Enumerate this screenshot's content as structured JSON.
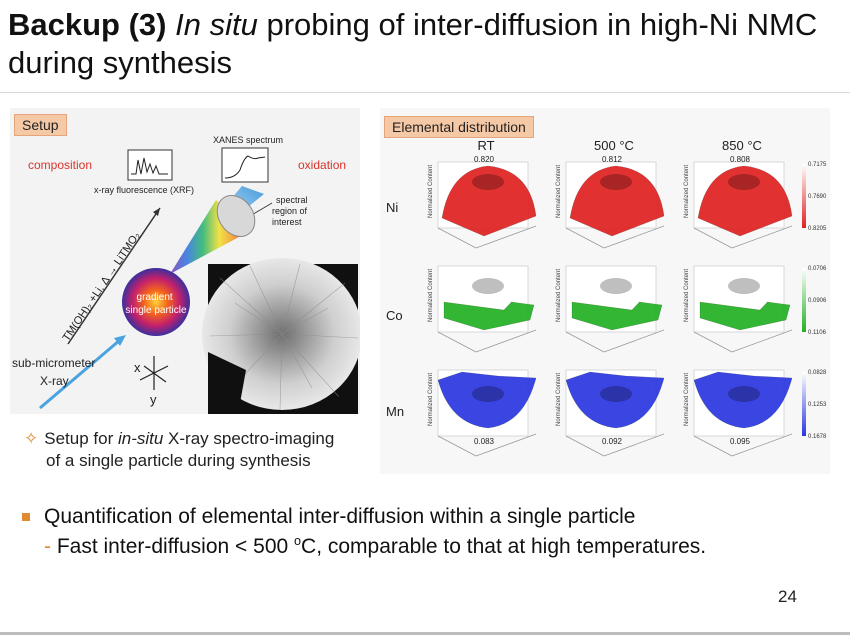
{
  "slide": {
    "title_bold": "Backup (3)",
    "title_italic": "In situ",
    "title_rest": "probing of inter-diffusion in high-Ni NMC during synthesis",
    "page_number": "24"
  },
  "setup_panel": {
    "tag": "Setup",
    "composition": "composition",
    "oxidation": "oxidation",
    "xanes": "XANES spectrum",
    "xrf": "x-ray fluorescence (XRF)",
    "spectral": [
      "spectral",
      "region of",
      "interest"
    ],
    "reaction": "TM(OH)₂ +Li, Δ → LiTMO₂",
    "particle": [
      "gradient",
      "single particle"
    ],
    "xray": [
      "sub-micrometer",
      "X-ray"
    ],
    "axis_x": "x",
    "axis_y": "y",
    "colors": {
      "beam": "#4aa3e0",
      "red_text": "#d9342b"
    }
  },
  "elemental_panel": {
    "tag": "Elemental distribution",
    "columns": [
      "RT",
      "500 °C",
      "850 °C"
    ],
    "rows": [
      {
        "element": "Ni",
        "color": "#e02020",
        "values": [
          "0.820",
          "0.812",
          "0.808"
        ],
        "scale": [
          "0.7175",
          "0.7690",
          "0.8205"
        ]
      },
      {
        "element": "Co",
        "color": "#22b022",
        "values": [
          "",
          "",
          ""
        ],
        "scale": [
          "0.0706",
          "0.0906",
          "0.1106"
        ]
      },
      {
        "element": "Mn",
        "color": "#2a36e0",
        "values": [
          "0.083",
          "0.092",
          "0.095"
        ],
        "scale": [
          "0.0828",
          "0.1253",
          "0.1678"
        ]
      }
    ],
    "axis_label": "Normalized Content"
  },
  "caption": {
    "line1_pre": "Setup for ",
    "line1_italic": "in-situ",
    "line1_post": " X-ray spectro-imaging",
    "line2": "of a single particle during synthesis"
  },
  "bullets": {
    "main": "Quantification of elemental inter-diffusion within a single particle",
    "sub_pre": "Fast inter-diffusion < 500 ",
    "sub_sup": "o",
    "sub_post": "C, comparable to that at high temperatures."
  }
}
